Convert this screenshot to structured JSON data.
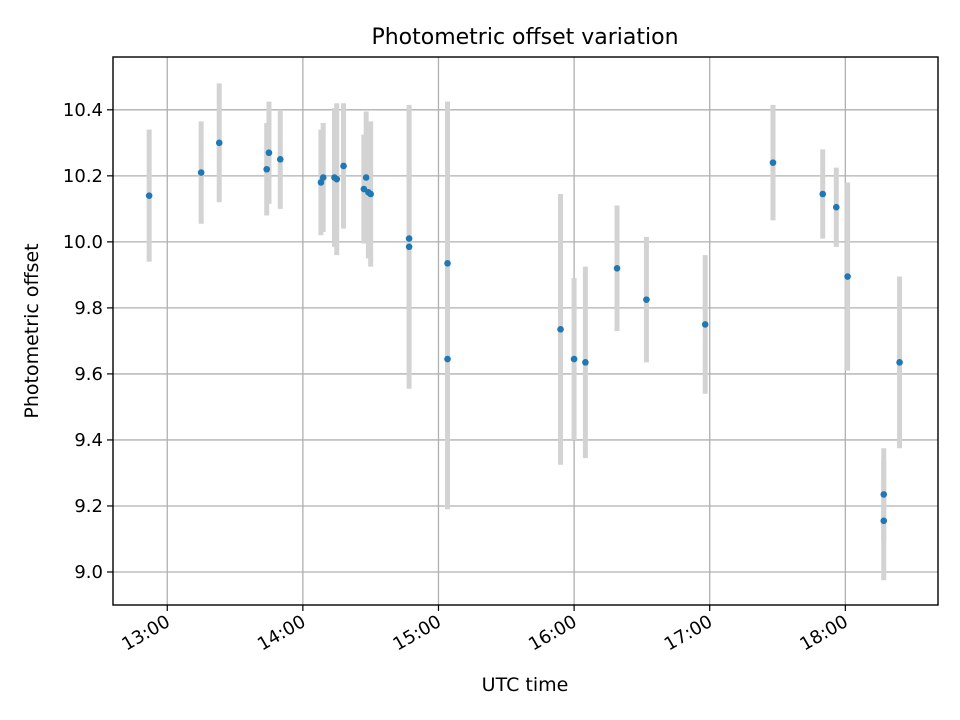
{
  "chart_data": {
    "type": "scatter",
    "title": "Photometric offset variation",
    "xlabel": "UTC time",
    "ylabel": "Photometric offset",
    "x_ticks": [
      "13:00",
      "14:00",
      "15:00",
      "16:00",
      "17:00",
      "18:00"
    ],
    "x_tick_values": [
      "13:00",
      "14:00",
      "15:00",
      "16:00",
      "17:00",
      "18:00"
    ],
    "xlim": [
      "12:36",
      "18:41"
    ],
    "y_ticks": [
      "9.0",
      "9.2",
      "9.4",
      "9.6",
      "9.8",
      "10.0",
      "10.2",
      "10.4"
    ],
    "ylim": [
      8.9,
      10.56
    ],
    "grid": true,
    "colors": {
      "point": "#1f77b4",
      "errorbar": "#d3d3d3"
    },
    "series": [
      {
        "points": [
          {
            "x": "12:52",
            "y": 10.14,
            "err": 0.2
          },
          {
            "x": "13:15",
            "y": 10.21,
            "err": 0.155
          },
          {
            "x": "13:23",
            "y": 10.3,
            "err": 0.18
          },
          {
            "x": "13:44",
            "y": 10.22,
            "err": 0.14
          },
          {
            "x": "13:45",
            "y": 10.27,
            "err": 0.155
          },
          {
            "x": "13:50",
            "y": 10.25,
            "err": 0.15
          },
          {
            "x": "14:08",
            "y": 10.18,
            "err": 0.16
          },
          {
            "x": "14:09",
            "y": 10.195,
            "err": 0.165
          },
          {
            "x": "14:14",
            "y": 10.195,
            "err": 0.21
          },
          {
            "x": "14:15",
            "y": 10.19,
            "err": 0.23
          },
          {
            "x": "14:18",
            "y": 10.23,
            "err": 0.19
          },
          {
            "x": "14:27",
            "y": 10.16,
            "err": 0.165
          },
          {
            "x": "14:28",
            "y": 10.195,
            "err": 0.2
          },
          {
            "x": "14:29",
            "y": 10.15,
            "err": 0.2
          },
          {
            "x": "14:30",
            "y": 10.145,
            "err": 0.22
          },
          {
            "x": "14:47",
            "y": 10.01,
            "err": 0.4
          },
          {
            "x": "14:47",
            "y": 9.985,
            "err": 0.43
          },
          {
            "x": "15:04",
            "y": 9.935,
            "err": 0.49
          },
          {
            "x": "15:04",
            "y": 9.645,
            "err": 0.455
          },
          {
            "x": "15:54",
            "y": 9.735,
            "err": 0.41
          },
          {
            "x": "16:00",
            "y": 9.645,
            "err": 0.245
          },
          {
            "x": "16:05",
            "y": 9.635,
            "err": 0.29
          },
          {
            "x": "16:19",
            "y": 9.92,
            "err": 0.19
          },
          {
            "x": "16:32",
            "y": 9.825,
            "err": 0.19
          },
          {
            "x": "16:58",
            "y": 9.75,
            "err": 0.21
          },
          {
            "x": "17:28",
            "y": 10.24,
            "err": 0.175
          },
          {
            "x": "17:50",
            "y": 10.145,
            "err": 0.135
          },
          {
            "x": "17:56",
            "y": 10.105,
            "err": 0.12
          },
          {
            "x": "18:01",
            "y": 9.895,
            "err": 0.285
          },
          {
            "x": "18:17",
            "y": 9.155,
            "err": 0.18
          },
          {
            "x": "18:17",
            "y": 9.235,
            "err": 0.14
          },
          {
            "x": "18:24",
            "y": 9.635,
            "err": 0.26
          }
        ]
      }
    ]
  }
}
